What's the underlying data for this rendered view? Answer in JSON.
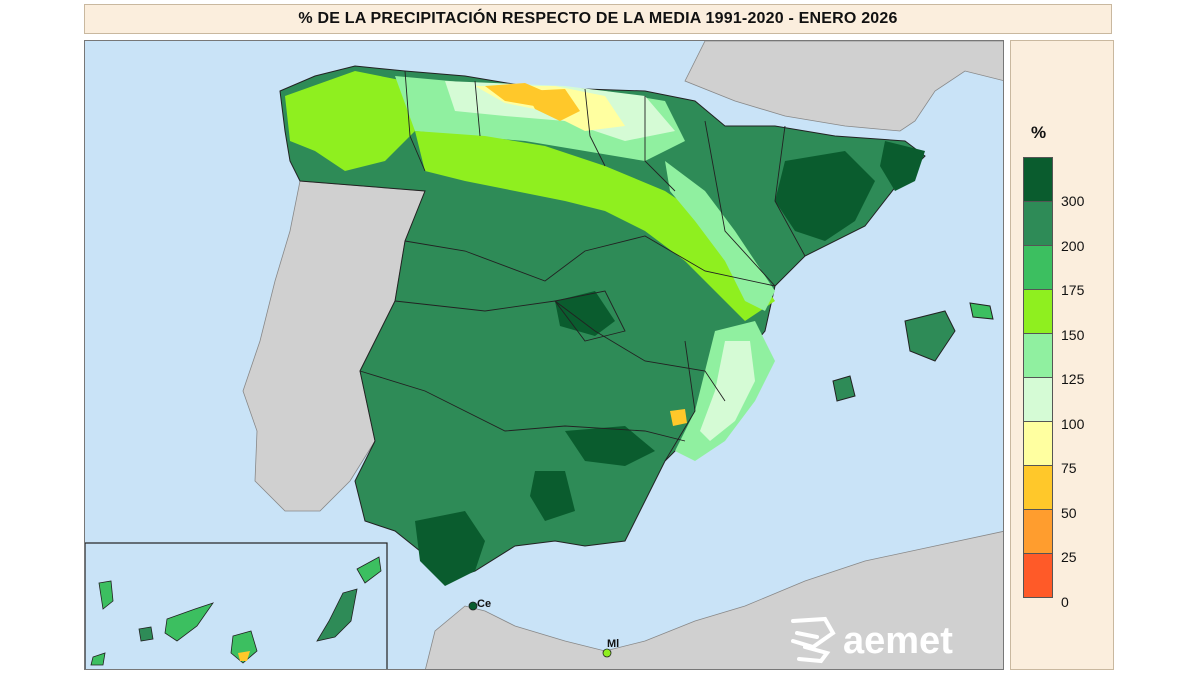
{
  "title": "% DE LA PRECIPITACIÓN RESPECTO DE LA MEDIA 1991-2020 - ENERO 2026",
  "legend": {
    "title": "%",
    "labels": [
      "300",
      "200",
      "175",
      "150",
      "125",
      "100",
      "75",
      "50",
      "25",
      "0"
    ],
    "colors": [
      "#0a5c2e",
      "#2e8b57",
      "#3cbf60",
      "#8fef1f",
      "#90f0a0",
      "#d5fbd5",
      "#ffffa0",
      "#ffc82a",
      "#ff9d2e",
      "#ff5a28"
    ]
  },
  "map": {
    "sea_color": "#c9e3f7",
    "land_other_color": "#d0d0d0",
    "city_labels": {
      "ceuta": "Ce",
      "melilla": "Ml"
    },
    "logo": "aemet"
  }
}
